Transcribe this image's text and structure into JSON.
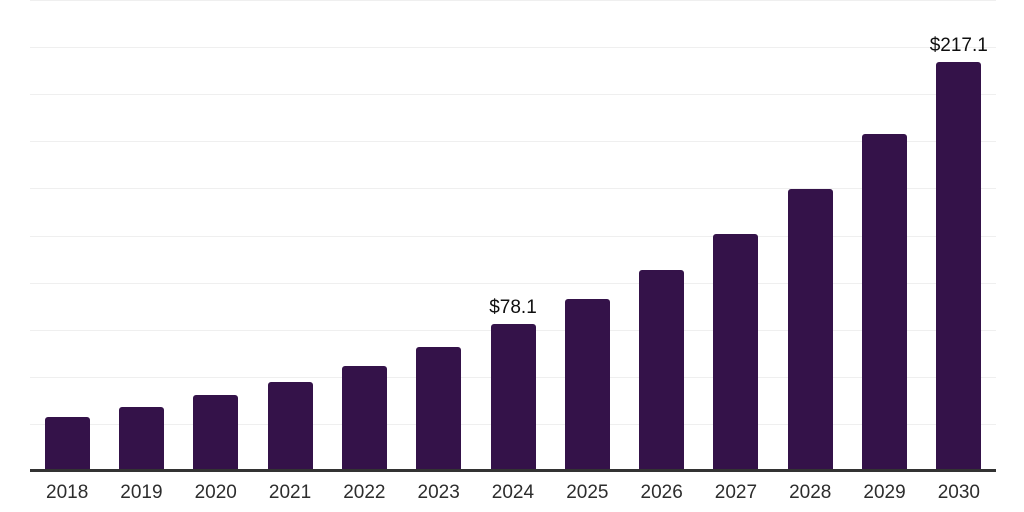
{
  "chart_data": {
    "type": "bar",
    "title": "",
    "xlabel": "",
    "ylabel": "",
    "categories": [
      "2018",
      "2019",
      "2020",
      "2021",
      "2022",
      "2023",
      "2024",
      "2025",
      "2026",
      "2027",
      "2028",
      "2029",
      "2030"
    ],
    "values": [
      28.6,
      34.0,
      40.3,
      47.2,
      55.7,
      65.8,
      78.1,
      91.3,
      106.7,
      125.8,
      149.6,
      178.8,
      217.1
    ],
    "value_labels": {
      "2024": "$78.1",
      "2030": "$217.1"
    },
    "ylim": [
      0,
      250
    ],
    "gridline_step": 25,
    "grid": "horizontal",
    "legend": "none",
    "colors": {
      "bar": "#341249",
      "axis_line": "#333333",
      "gridline": "#efefef",
      "tick_label": "#2d2d2d",
      "value_label": "#0f0f0f"
    }
  }
}
